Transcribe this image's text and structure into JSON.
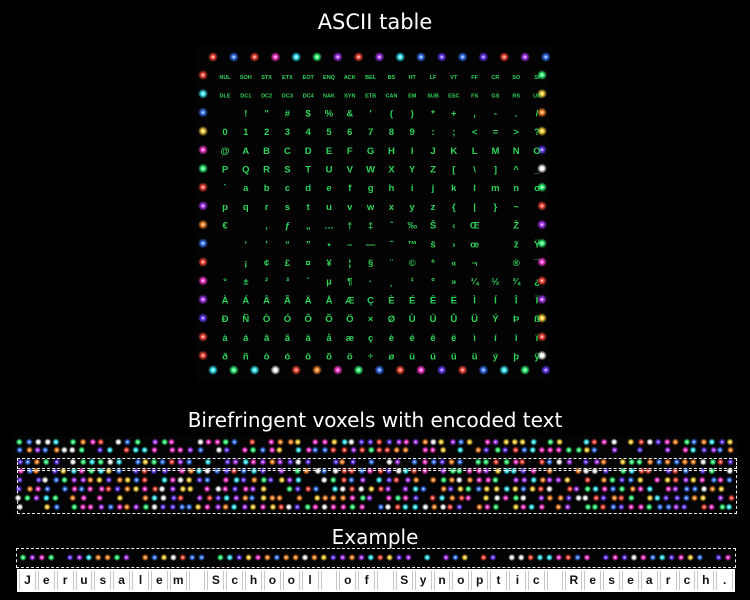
{
  "title": "ASCII table",
  "section_voxels": "Birefringent voxels with encoded text",
  "section_example": "Example",
  "example_text": "Jerusalem School of Synoptic Research.",
  "ascii_rows": [
    [
      "NUL",
      "SOH",
      "STX",
      "ETX",
      "EOT",
      "ENQ",
      "ACK",
      "BEL",
      "BS",
      "HT",
      "LF",
      "VT",
      "FF",
      "CR",
      "SO",
      "SI"
    ],
    [
      "DLE",
      "DC1",
      "DC2",
      "DC3",
      "DC4",
      "NAK",
      "SYN",
      "ETB",
      "CAN",
      "EM",
      "SUB",
      "ESC",
      "FS",
      "GS",
      "RS",
      "US"
    ],
    [
      "",
      "!",
      "\"",
      "#",
      "$",
      "%",
      "&",
      "'",
      "(",
      ")",
      "*",
      "+",
      ",",
      "-",
      ".",
      "/"
    ],
    [
      "0",
      "1",
      "2",
      "3",
      "4",
      "5",
      "6",
      "7",
      "8",
      "9",
      ":",
      ";",
      "<",
      "=",
      ">",
      "?"
    ],
    [
      "@",
      "A",
      "B",
      "C",
      "D",
      "E",
      "F",
      "G",
      "H",
      "I",
      "J",
      "K",
      "L",
      "M",
      "N",
      "O"
    ],
    [
      "P",
      "Q",
      "R",
      "S",
      "T",
      "U",
      "V",
      "W",
      "X",
      "Y",
      "Z",
      "[",
      "\\",
      "]",
      "^",
      "_"
    ],
    [
      "`",
      "a",
      "b",
      "c",
      "d",
      "e",
      "f",
      "g",
      "h",
      "i",
      "j",
      "k",
      "l",
      "m",
      "n",
      "o"
    ],
    [
      "p",
      "q",
      "r",
      "s",
      "t",
      "u",
      "v",
      "w",
      "x",
      "y",
      "z",
      "{",
      "|",
      "}",
      "~",
      ""
    ],
    [
      "€",
      "",
      "‚",
      "ƒ",
      "„",
      "…",
      "†",
      "‡",
      "ˆ",
      "‰",
      "Š",
      "‹",
      "Œ",
      "",
      "Ž",
      ""
    ],
    [
      "",
      "‘",
      "’",
      "“",
      "”",
      "•",
      "–",
      "—",
      "˜",
      "™",
      "š",
      "›",
      "œ",
      "",
      "ž",
      "Ÿ"
    ],
    [
      "",
      "¡",
      "¢",
      "£",
      "¤",
      "¥",
      "¦",
      "§",
      "¨",
      "©",
      "ª",
      "«",
      "¬",
      "",
      "®",
      "¯"
    ],
    [
      "°",
      "±",
      "²",
      "³",
      "´",
      "µ",
      "¶",
      "·",
      "¸",
      "¹",
      "º",
      "»",
      "¼",
      "½",
      "¾",
      "¿"
    ],
    [
      "À",
      "Á",
      "Â",
      "Ã",
      "Ä",
      "Å",
      "Æ",
      "Ç",
      "È",
      "É",
      "Ê",
      "Ë",
      "Ì",
      "Í",
      "Î",
      "Ï"
    ],
    [
      "Ð",
      "Ñ",
      "Ò",
      "Ó",
      "Ô",
      "Õ",
      "Ö",
      "×",
      "Ø",
      "Ù",
      "Ú",
      "Û",
      "Ü",
      "Ý",
      "Þ",
      "ß"
    ],
    [
      "à",
      "á",
      "â",
      "ã",
      "ä",
      "å",
      "æ",
      "ç",
      "è",
      "é",
      "ê",
      "ë",
      "ì",
      "í",
      "î",
      "ï"
    ],
    [
      "ð",
      "ñ",
      "ò",
      "ó",
      "ô",
      "õ",
      "ö",
      "÷",
      "ø",
      "ù",
      "ú",
      "û",
      "ü",
      "ý",
      "þ",
      "ÿ"
    ]
  ],
  "colors": {
    "background": "#000000",
    "glyph_green": "#2fd35a",
    "voxel_palette": [
      "#ff3ad0",
      "#3a7bff",
      "#35ff7a",
      "#ffd23a",
      "#ff4a3a",
      "#3af0ff",
      "#b03aff",
      "#ff8a2a",
      "#ffffff",
      "#6a3aff"
    ]
  }
}
